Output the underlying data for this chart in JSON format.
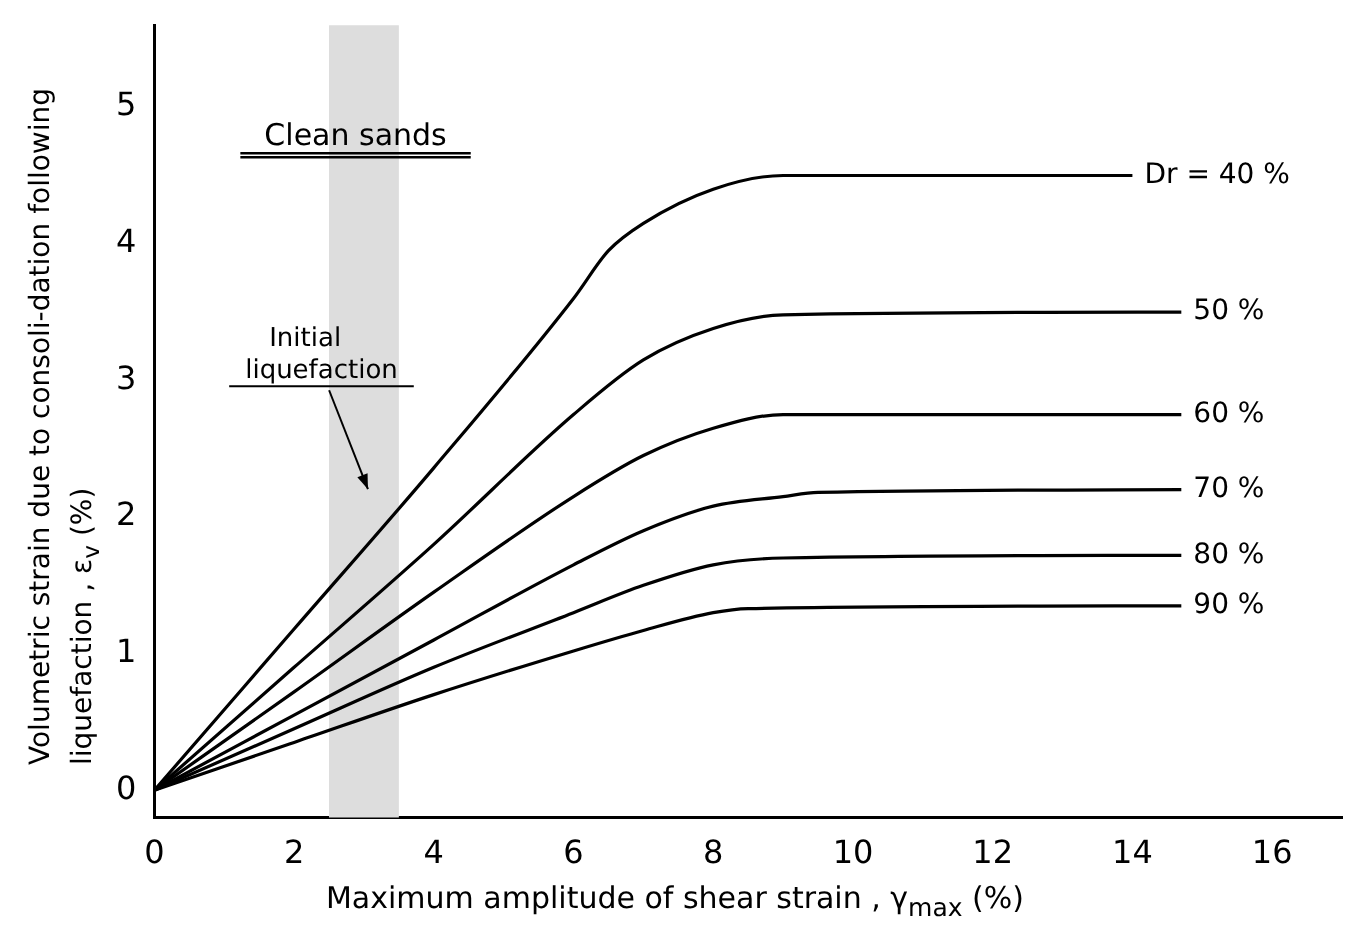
{
  "chart_data": {
    "type": "line",
    "xlabel": "Maximum amplitude of shear strain , γ$_{max}$ (%)",
    "ylabel": "Volumetric strain due to consoli-dation following liquefaction , ε$_{v}$ (%)",
    "xlim": [
      0,
      17
    ],
    "ylim": [
      -0.2,
      5.6
    ],
    "xticks": [
      0,
      2,
      4,
      6,
      8,
      10,
      12,
      14,
      16
    ],
    "yticks": [
      0,
      1,
      2,
      3,
      4,
      5
    ],
    "grid": false,
    "legend": false,
    "marker": "none",
    "line_style": "solid",
    "annotations": [
      "Clean sands"
    ],
    "bands": [
      {
        "axis": "x",
        "from": 2.5,
        "to": 3.5,
        "label": "Initial liquefaction",
        "color": "#dddddd"
      }
    ],
    "series": [
      {
        "name": "Dr = 40 %",
        "color": "#000000",
        "x": [
          0,
          2,
          4,
          6,
          6.5,
          7,
          8,
          9,
          14
        ],
        "values": [
          0,
          1.18,
          2.36,
          3.6,
          3.95,
          4.15,
          4.4,
          4.5,
          4.5
        ]
      },
      {
        "name": "50 %",
        "color": "#000000",
        "x": [
          0,
          2,
          4,
          6,
          7,
          8,
          9,
          14.7
        ],
        "values": [
          0,
          0.9,
          1.8,
          2.75,
          3.15,
          3.38,
          3.48,
          3.5
        ]
      },
      {
        "name": "60 %",
        "color": "#000000",
        "x": [
          0,
          2,
          4,
          6,
          7,
          8,
          9,
          14.7
        ],
        "values": [
          0,
          0.72,
          1.45,
          2.15,
          2.45,
          2.65,
          2.75,
          2.75
        ]
      },
      {
        "name": "70 %",
        "color": "#000000",
        "x": [
          0,
          2,
          4,
          6,
          7,
          8,
          9,
          9.5,
          14.7
        ],
        "values": [
          0,
          0.55,
          1.1,
          1.65,
          1.9,
          2.08,
          2.15,
          2.18,
          2.2
        ]
      },
      {
        "name": "80 %",
        "color": "#000000",
        "x": [
          0,
          2,
          4,
          6,
          7,
          8,
          9,
          14.7
        ],
        "values": [
          0,
          0.45,
          0.9,
          1.3,
          1.5,
          1.65,
          1.7,
          1.72
        ]
      },
      {
        "name": "90 %",
        "color": "#000000",
        "x": [
          0,
          2,
          4,
          6,
          7,
          8,
          8.5,
          14.7
        ],
        "values": [
          0,
          0.35,
          0.7,
          1.02,
          1.17,
          1.3,
          1.33,
          1.35
        ]
      }
    ]
  }
}
